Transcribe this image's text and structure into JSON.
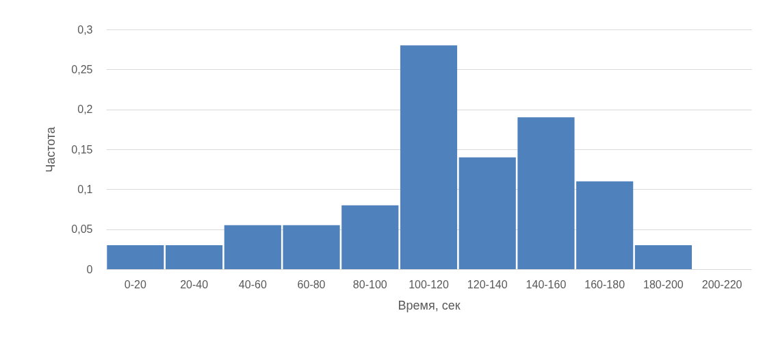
{
  "chart_data": {
    "type": "bar",
    "xlabel": "Время, сек",
    "ylabel": "Частота",
    "categories": [
      "0-20",
      "20-40",
      "40-60",
      "60-80",
      "80-100",
      "100-120",
      "120-140",
      "140-160",
      "160-180",
      "180-200",
      "200-220"
    ],
    "values": [
      0.03,
      0.03,
      0.055,
      0.055,
      0.08,
      0.28,
      0.14,
      0.19,
      0.11,
      0.03,
      0
    ],
    "color": "#4f81bd",
    "ylim": [
      0,
      0.3
    ],
    "yticks": [
      {
        "value": 0,
        "label": "0"
      },
      {
        "value": 0.05,
        "label": "0,05"
      },
      {
        "value": 0.1,
        "label": "0,1"
      },
      {
        "value": 0.15,
        "label": "0,15"
      },
      {
        "value": 0.2,
        "label": "0,2"
      },
      {
        "value": 0.25,
        "label": "0,25"
      },
      {
        "value": 0.3,
        "label": "0,3"
      }
    ],
    "grid": "y"
  }
}
